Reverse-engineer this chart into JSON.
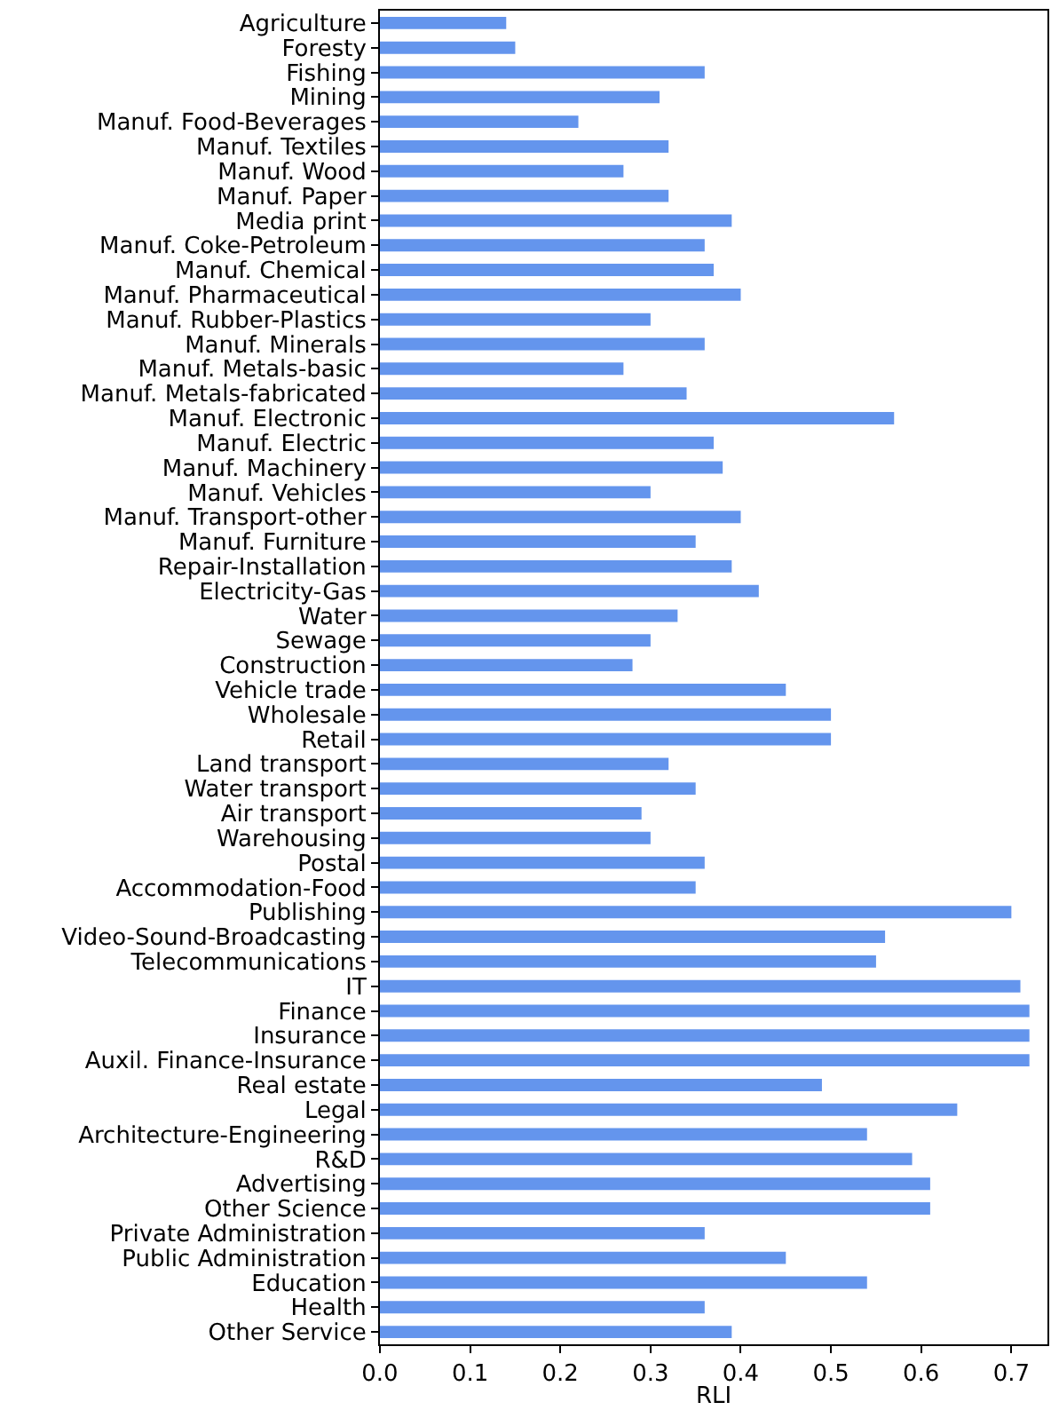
{
  "chart_data": {
    "type": "bar",
    "orientation": "horizontal",
    "xlabel": "RLI",
    "categories": [
      "Agriculture",
      "Foresty",
      "Fishing",
      "Mining",
      "Manuf. Food-Beverages",
      "Manuf. Textiles",
      "Manuf. Wood",
      "Manuf. Paper",
      "Media print",
      "Manuf. Coke-Petroleum",
      "Manuf. Chemical",
      "Manuf. Pharmaceutical",
      "Manuf. Rubber-Plastics",
      "Manuf. Minerals",
      "Manuf. Metals-basic",
      "Manuf. Metals-fabricated",
      "Manuf. Electronic",
      "Manuf. Electric",
      "Manuf. Machinery",
      "Manuf. Vehicles",
      "Manuf. Transport-other",
      "Manuf. Furniture",
      "Repair-Installation",
      "Electricity-Gas",
      "Water",
      "Sewage",
      "Construction",
      "Vehicle trade",
      "Wholesale",
      "Retail",
      "Land transport",
      "Water transport",
      "Air transport",
      "Warehousing",
      "Postal",
      "Accommodation-Food",
      "Publishing",
      "Video-Sound-Broadcasting",
      "Telecommunications",
      "IT",
      "Finance",
      "Insurance",
      "Auxil. Finance-Insurance",
      "Real estate",
      "Legal",
      "Architecture-Engineering",
      "R&D",
      "Advertising",
      "Other Science",
      "Private Administration",
      "Public Administration",
      "Education",
      "Health",
      "Other Service"
    ],
    "values": [
      0.14,
      0.15,
      0.36,
      0.31,
      0.22,
      0.32,
      0.27,
      0.32,
      0.39,
      0.36,
      0.37,
      0.4,
      0.3,
      0.36,
      0.27,
      0.34,
      0.57,
      0.37,
      0.38,
      0.3,
      0.4,
      0.35,
      0.39,
      0.42,
      0.33,
      0.3,
      0.28,
      0.45,
      0.5,
      0.5,
      0.32,
      0.35,
      0.29,
      0.3,
      0.36,
      0.35,
      0.7,
      0.56,
      0.55,
      0.71,
      0.72,
      0.72,
      0.72,
      0.49,
      0.64,
      0.54,
      0.59,
      0.61,
      0.61,
      0.36,
      0.45,
      0.54,
      0.36,
      0.39
    ],
    "color": "#6495ed",
    "xlim": [
      0,
      0.74
    ],
    "xticks": [
      {
        "value": 0,
        "label": "0.0"
      },
      0.1,
      0.2,
      0.3,
      0.4,
      0.5,
      0.6,
      0.7
    ],
    "grid": false
  }
}
